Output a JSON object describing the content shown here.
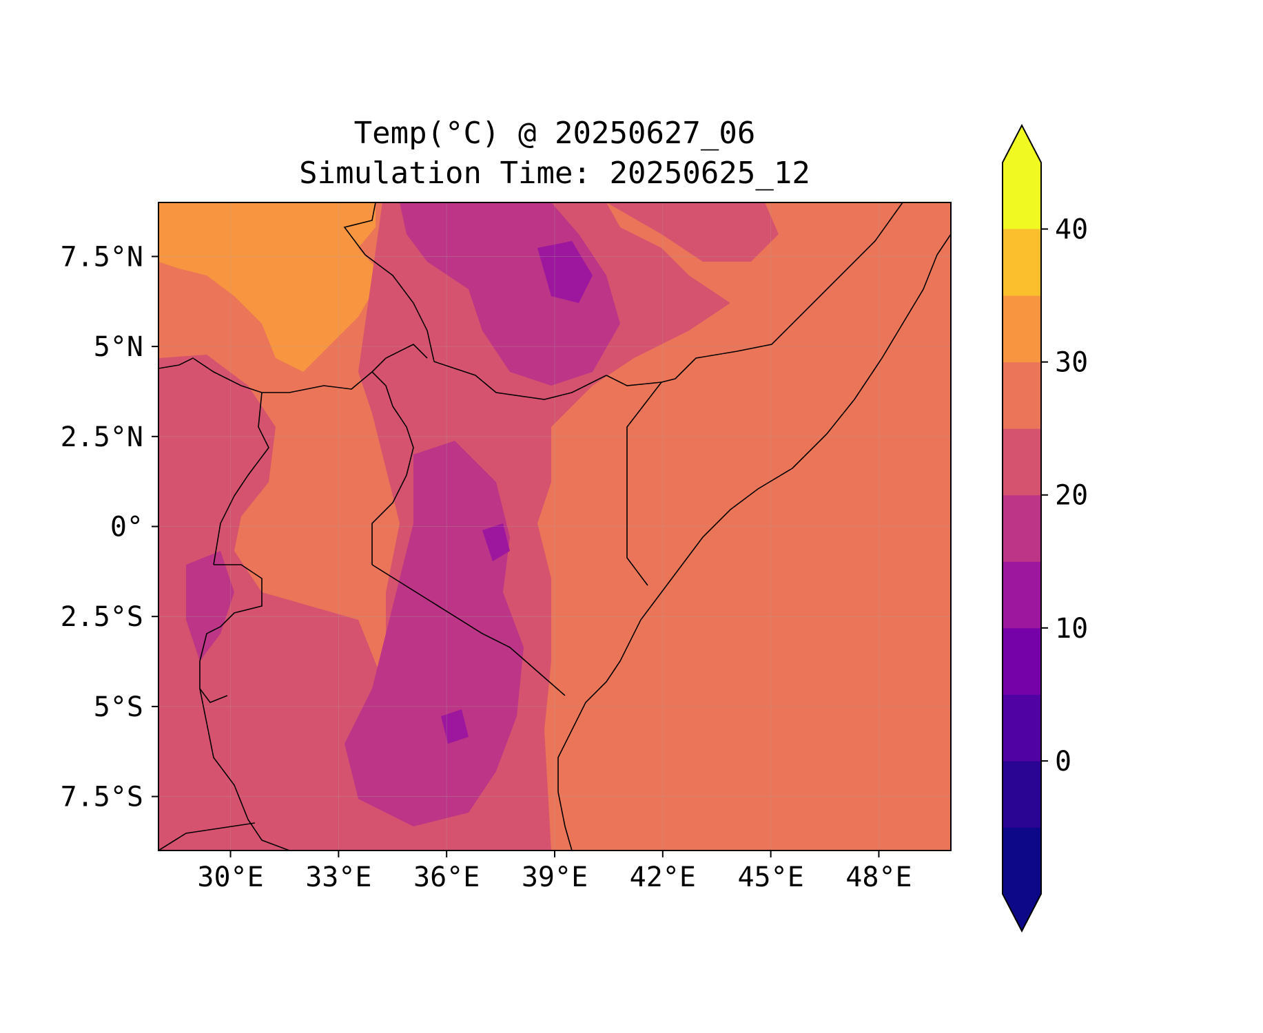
{
  "map": {
    "title_line1": "Temp(°C) @ 20250627_06",
    "title_line2": "Simulation Time: 20250625_12",
    "x_ticks": [
      {
        "lon": 30,
        "label": "30°E"
      },
      {
        "lon": 33,
        "label": "33°E"
      },
      {
        "lon": 36,
        "label": "36°E"
      },
      {
        "lon": 39,
        "label": "39°E"
      },
      {
        "lon": 42,
        "label": "42°E"
      },
      {
        "lon": 45,
        "label": "45°E"
      },
      {
        "lon": 48,
        "label": "48°E"
      }
    ],
    "y_ticks": [
      {
        "lat": 7.5,
        "label": "7.5°N"
      },
      {
        "lat": 5,
        "label": "5°N"
      },
      {
        "lat": 2.5,
        "label": "2.5°N"
      },
      {
        "lat": 0,
        "label": "0°"
      },
      {
        "lat": -2.5,
        "label": "2.5°S"
      },
      {
        "lat": -5,
        "label": "5°S"
      },
      {
        "lat": -7.5,
        "label": "7.5°S"
      }
    ],
    "lon_range": [
      28,
      50
    ],
    "lat_range": [
      -9,
      9
    ]
  },
  "colorbar": {
    "levels": [
      -5,
      0,
      5,
      10,
      15,
      20,
      25,
      30,
      35,
      40,
      45
    ],
    "extend": "both",
    "tick_labels": [
      "0",
      "10",
      "20",
      "30",
      "40"
    ],
    "tick_values": [
      0,
      10,
      20,
      30,
      40
    ],
    "colors": [
      "#0d0887",
      "#2a0593",
      "#5002a2",
      "#7501a8",
      "#9c179e",
      "#bc3587",
      "#d5536f",
      "#ea7558",
      "#f89540",
      "#fbbe2c",
      "#f0f921"
    ],
    "under_color": "#0d0887",
    "over_color": "#f0f921"
  }
}
